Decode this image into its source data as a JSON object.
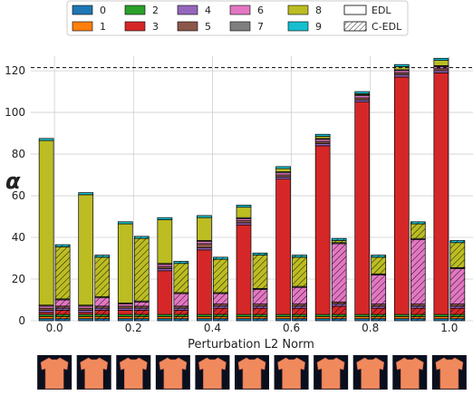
{
  "chart_data": {
    "type": "bar",
    "stacked": true,
    "grouped": true,
    "xlabel": "Perturbation L2 Norm",
    "ylabel": "α",
    "ylim": [
      0,
      127
    ],
    "xlim": [
      -0.06,
      1.06
    ],
    "y_ticks": [
      0,
      20,
      40,
      60,
      80,
      100,
      120
    ],
    "x_ticks": [
      "0.0",
      "0.2",
      "0.4",
      "0.6",
      "0.8",
      "1.0"
    ],
    "x_tick_values": [
      0,
      0.2,
      0.4,
      0.6,
      0.8,
      1.0
    ],
    "grid": true,
    "reference_line_y": 121.5,
    "legend_position": "top",
    "classes": [
      {
        "name": "0",
        "color": "#1f77b4"
      },
      {
        "name": "1",
        "color": "#ff7f0e"
      },
      {
        "name": "2",
        "color": "#2ca02c"
      },
      {
        "name": "3",
        "color": "#d62728"
      },
      {
        "name": "4",
        "color": "#9467bd"
      },
      {
        "name": "5",
        "color": "#8c564b"
      },
      {
        "name": "6",
        "color": "#e377c2"
      },
      {
        "name": "7",
        "color": "#7f7f7f"
      },
      {
        "name": "8",
        "color": "#bcbd22"
      },
      {
        "name": "9",
        "color": "#17becf"
      }
    ],
    "models": [
      "EDL",
      "C-EDL"
    ],
    "x": [
      0.0,
      0.1,
      0.2,
      0.3,
      0.4,
      0.5,
      0.6,
      0.7,
      0.8,
      0.9,
      1.0
    ],
    "series": [
      {
        "name": "EDL",
        "stacks": [
          [
            1,
            1,
            1,
            1,
            1,
            1,
            1,
            0.5,
            79,
            1
          ],
          [
            1,
            1,
            1,
            1,
            1,
            1,
            1,
            0.5,
            53,
            1
          ],
          [
            1,
            1,
            1,
            2,
            1,
            1,
            1,
            0.5,
            38,
            1
          ],
          [
            1,
            1,
            1,
            21,
            1,
            1,
            1,
            0.5,
            21,
            1
          ],
          [
            1,
            1,
            1,
            31,
            1,
            2,
            1,
            0.5,
            11,
            1
          ],
          [
            1,
            1,
            1,
            43,
            1,
            1,
            1,
            0.5,
            5,
            1
          ],
          [
            1,
            1,
            1,
            65,
            1,
            1,
            1,
            0.5,
            1.5,
            1
          ],
          [
            1,
            1,
            1,
            81,
            1,
            1,
            1,
            0.5,
            1,
            1
          ],
          [
            1,
            1,
            1,
            102,
            1,
            1,
            1,
            0.5,
            0.5,
            1
          ],
          [
            1,
            1,
            1,
            114,
            1,
            1,
            1,
            0.5,
            1.5,
            1
          ],
          [
            1,
            1,
            1,
            116,
            1,
            1,
            1,
            0.5,
            2.5,
            1
          ]
        ]
      },
      {
        "name": "C-EDL",
        "stacks": [
          [
            1,
            1,
            1,
            2,
            1,
            1,
            3,
            0.5,
            25,
            1
          ],
          [
            1,
            1,
            1,
            2,
            1,
            1,
            4,
            0.5,
            19,
            1
          ],
          [
            1,
            1,
            1,
            2,
            1,
            1,
            2,
            0.5,
            30,
            1
          ],
          [
            1,
            1,
            1,
            2,
            1,
            1,
            6,
            0.5,
            14,
            1
          ],
          [
            1,
            1,
            1,
            3,
            1,
            1,
            5,
            0.5,
            16,
            1
          ],
          [
            1,
            1,
            1,
            3,
            1,
            1,
            7,
            0.5,
            16,
            1
          ],
          [
            1,
            1,
            1,
            3,
            1,
            1,
            8,
            0.5,
            14,
            1
          ],
          [
            1,
            1,
            1,
            4,
            1,
            1,
            28,
            0.5,
            1,
            1
          ],
          [
            1,
            1,
            1,
            3,
            1,
            1,
            14,
            0.5,
            8,
            1
          ],
          [
            1,
            1,
            1,
            3,
            1,
            1,
            31,
            0.5,
            7,
            1
          ],
          [
            1,
            1,
            1,
            3,
            1,
            1,
            17,
            0.5,
            12,
            1
          ]
        ]
      }
    ]
  },
  "thumbnails": {
    "count": 11,
    "background": "#0a0f1e",
    "fill": "#f08a5d"
  }
}
